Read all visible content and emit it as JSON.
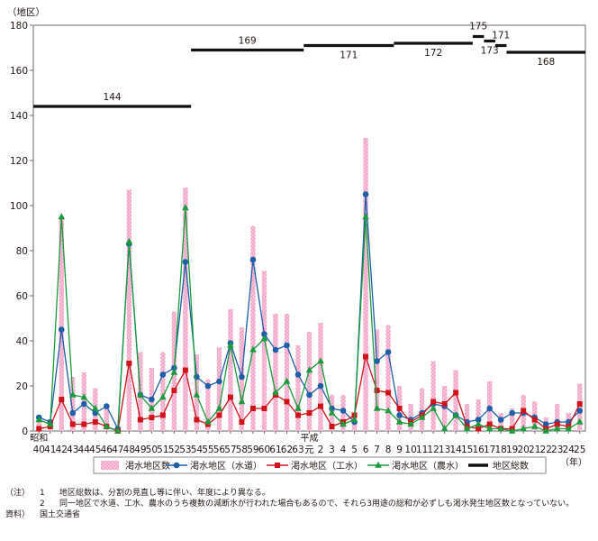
{
  "chart_data": {
    "type": "bar+line",
    "ylabel": "（地区）",
    "xlabel": "（年）",
    "ylim": [
      0,
      180
    ],
    "yticks": [
      0,
      20,
      40,
      60,
      80,
      100,
      120,
      140,
      160,
      180
    ],
    "grid": false,
    "legend_position": "bottom",
    "era_labels": [
      {
        "label": "昭和",
        "before": "40"
      },
      {
        "label": "平成",
        "before": "元"
      }
    ],
    "categories": [
      "40",
      "41",
      "42",
      "43",
      "44",
      "45",
      "46",
      "47",
      "48",
      "49",
      "50",
      "51",
      "52",
      "53",
      "54",
      "55",
      "56",
      "57",
      "58",
      "59",
      "60",
      "61",
      "62",
      "63",
      "元",
      "2",
      "3",
      "4",
      "5",
      "6",
      "7",
      "8",
      "9",
      "10",
      "11",
      "12",
      "13",
      "14",
      "15",
      "16",
      "17",
      "18",
      "19",
      "20",
      "21",
      "22",
      "23",
      "24",
      "25"
    ],
    "series": [
      {
        "name": "渇水地区数",
        "kind": "bar",
        "color": "#f2a3c6",
        "values": [
          7,
          5,
          95,
          24,
          26,
          19,
          12,
          1,
          107,
          35,
          28,
          35,
          53,
          108,
          34,
          23,
          37,
          54,
          46,
          91,
          71,
          52,
          52,
          38,
          44,
          48,
          16,
          16,
          6,
          130,
          45,
          47,
          20,
          12,
          19,
          31,
          20,
          27,
          12,
          14,
          22,
          8,
          10,
          16,
          13,
          6,
          12,
          8,
          21
        ]
      },
      {
        "name": "渇水地区（水道）",
        "kind": "line",
        "color": "#1e5fa8",
        "marker": "circle",
        "values": [
          6,
          4,
          45,
          8,
          12,
          8,
          11,
          1,
          83,
          16,
          14,
          25,
          28,
          75,
          24,
          20,
          22,
          39,
          24,
          76,
          43,
          36,
          38,
          25,
          16,
          20,
          10,
          9,
          4,
          105,
          31,
          35,
          7,
          5,
          8,
          12,
          11,
          7,
          4,
          5,
          10,
          5,
          8,
          8,
          6,
          3,
          4,
          4,
          9
        ]
      },
      {
        "name": "渇水地区（工水）",
        "kind": "line",
        "color": "#d0121b",
        "marker": "square",
        "values": [
          1,
          2,
          14,
          3,
          3,
          4,
          2,
          0,
          30,
          5,
          6,
          7,
          18,
          27,
          5,
          3,
          7,
          15,
          4,
          10,
          10,
          16,
          13,
          7,
          8,
          11,
          2,
          4,
          7,
          33,
          18,
          17,
          10,
          4,
          7,
          13,
          12,
          17,
          2,
          1,
          3,
          1,
          1,
          9,
          5,
          1,
          3,
          2,
          12
        ]
      },
      {
        "name": "渇水地区（農水）",
        "kind": "line",
        "color": "#1a9b3c",
        "marker": "triangle",
        "values": [
          5,
          3,
          95,
          16,
          15,
          10,
          2,
          0,
          84,
          16,
          10,
          15,
          26,
          99,
          16,
          4,
          10,
          38,
          13,
          36,
          41,
          17,
          22,
          10,
          27,
          31,
          8,
          3,
          5,
          95,
          10,
          9,
          4,
          3,
          6,
          10,
          1,
          7,
          1,
          3,
          1,
          1,
          0,
          1,
          2,
          0,
          1,
          1,
          4
        ]
      },
      {
        "name": "地区総数",
        "kind": "step",
        "color": "#111111",
        "segments": [
          {
            "value": 144,
            "from": "40",
            "to": "53"
          },
          {
            "value": 169,
            "from": "54",
            "to": "63"
          },
          {
            "value": 171,
            "from": "元",
            "to": "8"
          },
          {
            "value": 172,
            "from": "9",
            "to": "15"
          },
          {
            "value": 175,
            "from": "16",
            "to": "16"
          },
          {
            "value": 173,
            "from": "17",
            "to": "17"
          },
          {
            "value": 171,
            "from": "18",
            "to": "18"
          },
          {
            "value": 168,
            "from": "19",
            "to": "25"
          }
        ]
      }
    ]
  },
  "notes": {
    "head": "（注）",
    "items": [
      {
        "num": "1",
        "text": "地区総数は、分割の見直し等に伴い、年度により異なる。"
      },
      {
        "num": "2",
        "text": "同一地区で水道、工水、農水のうち複数の減断水が行われた場合もあるので、それら3用途の総和が必ずしも渇水発生地区数となっていない。"
      }
    ],
    "source_head": "資料）",
    "source": "国土交通省"
  }
}
